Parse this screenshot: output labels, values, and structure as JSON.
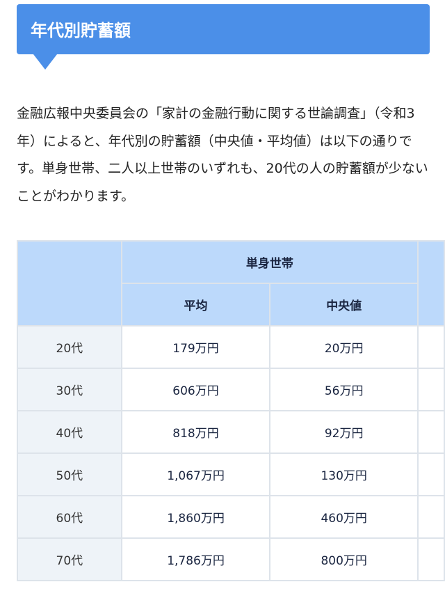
{
  "heading": "年代別貯蓄額",
  "paragraph": "金融広報中央委員会の「家計の金融行動に関する世論調査」（令和3年）によると、年代別の貯蓄額（中央値・平均値）は以下の通りです。単身世帯、二人以上世帯のいずれも、20代の人の貯蓄額が少ないことがわかります。",
  "table": {
    "group_header": "単身世帯",
    "col_headers": [
      "平均",
      "中央値"
    ],
    "rows": [
      {
        "age": "20代",
        "mean": "179万円",
        "median": "20万円"
      },
      {
        "age": "30代",
        "mean": "606万円",
        "median": "56万円"
      },
      {
        "age": "40代",
        "mean": "818万円",
        "median": "92万円"
      },
      {
        "age": "50代",
        "mean": "1,067万円",
        "median": "130万円"
      },
      {
        "age": "60代",
        "mean": "1,860万円",
        "median": "460万円"
      },
      {
        "age": "70代",
        "mean": "1,786万円",
        "median": "800万円"
      }
    ]
  }
}
